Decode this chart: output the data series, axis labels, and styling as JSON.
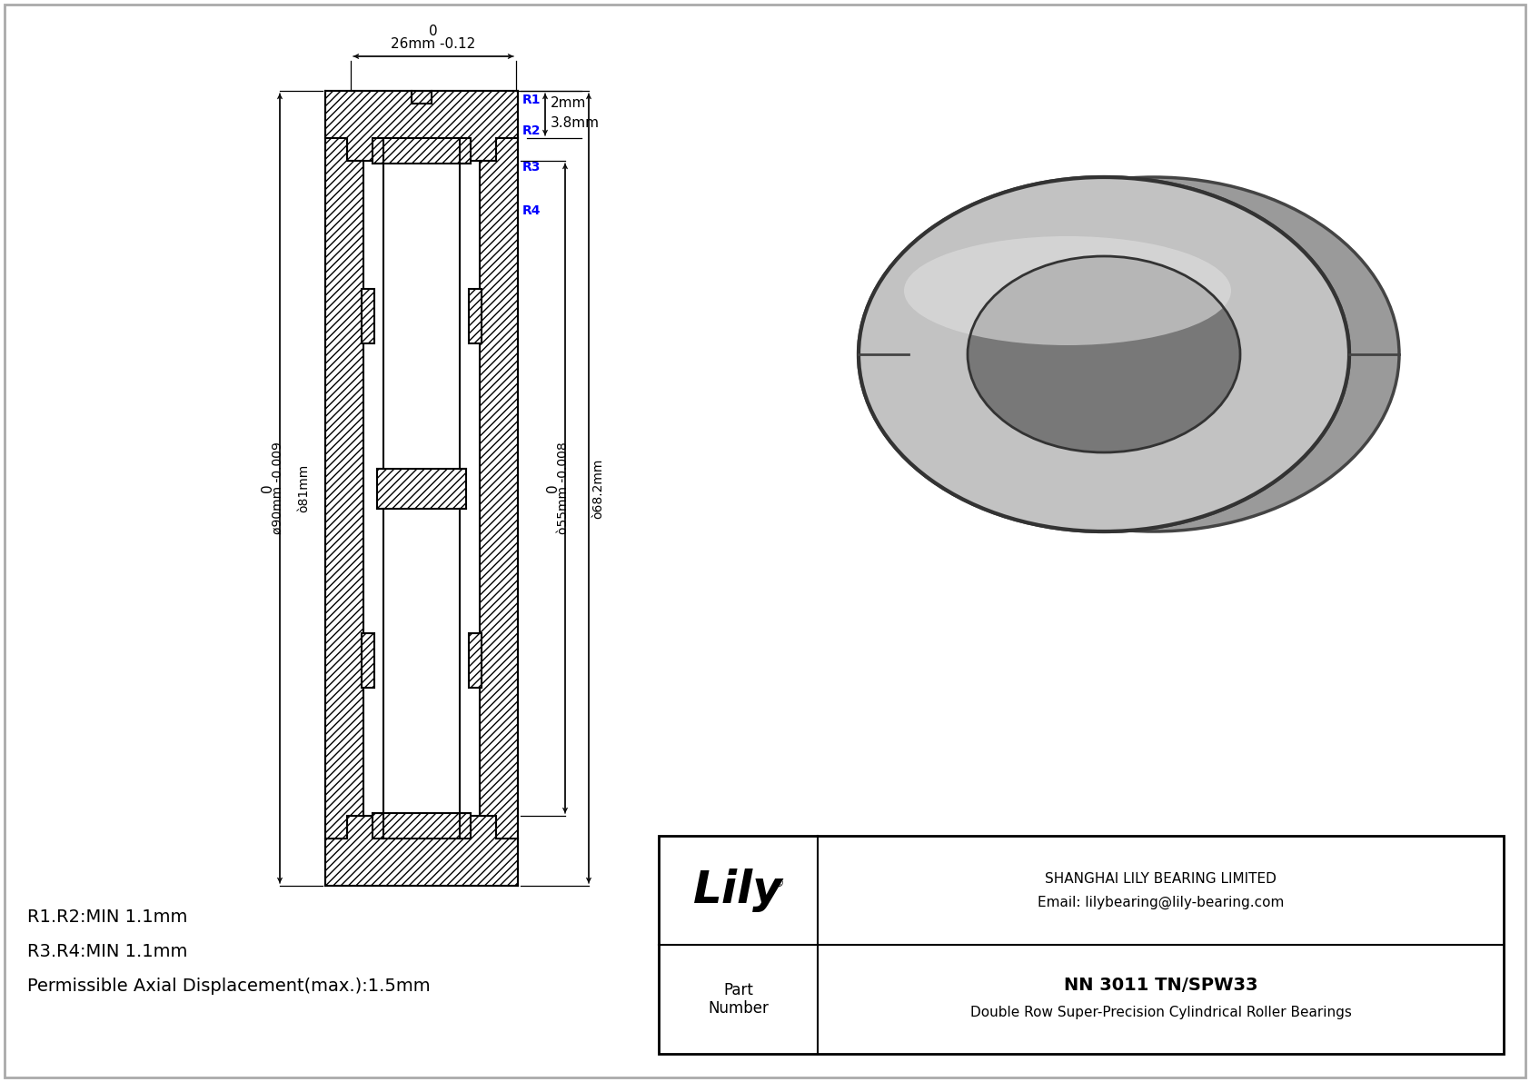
{
  "bg_color": "#ffffff",
  "line_color": "#000000",
  "blue_color": "#0000ff",
  "title": "NN 3011 TN/SPW33",
  "subtitle": "Double Row Super-Precision Cylindrical Roller Bearings",
  "company": "SHANGHAI LILY BEARING LIMITED",
  "email": "Email: lilybearing@lily-bearing.com",
  "part_label": "Part\nNumber",
  "dim_26": "26mm -0.12",
  "dim_0_top": "0",
  "dim_2mm": "2mm",
  "dim_38mm": "3.8mm",
  "dim_od1": "0",
  "dim_od2": "ø90mm -0.009",
  "dim_od3": "ò81mm",
  "dim_id1": "0",
  "dim_id2": "ò55mm -0.008",
  "dim_id3": "ò68.2mm",
  "label_r1": "R1",
  "label_r2": "R2",
  "label_r3": "R3",
  "label_r4": "R4",
  "note1": "R1.R2:MIN 1.1mm",
  "note2": "R3.R4:MIN 1.1mm",
  "note3": "Permissible Axial Displacement(max.):1.5mm"
}
